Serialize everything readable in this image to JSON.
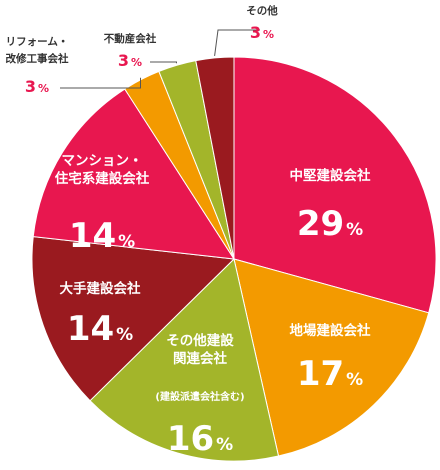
{
  "chart_data": {
    "type": "pie",
    "start_angle_deg": 0,
    "direction": "clockwise",
    "slices": [
      {
        "label": [
          "中堅建設会社"
        ],
        "value": 29,
        "unit": "%",
        "color": "#e8174f",
        "label_pos": "inside"
      },
      {
        "label": [
          "地場建設会社"
        ],
        "value": 17,
        "unit": "%",
        "color": "#f39a00",
        "label_pos": "inside"
      },
      {
        "label": [
          "その他建設",
          "関連会社"
        ],
        "note": "(建設派遣会社含む)",
        "value": 16,
        "unit": "%",
        "color": "#a3b52a",
        "label_pos": "inside"
      },
      {
        "label": [
          "大手建設会社"
        ],
        "value": 14,
        "unit": "%",
        "color": "#9a1a1f",
        "label_pos": "inside"
      },
      {
        "label": [
          "マンション・",
          "住宅系建設会社"
        ],
        "value": 14,
        "unit": "%",
        "color": "#e8174f",
        "label_pos": "inside"
      },
      {
        "label": [
          "リフォーム・",
          "改修工事会社"
        ],
        "value": 3,
        "unit": "%",
        "color": "#f39a00",
        "label_pos": "outside"
      },
      {
        "label": [
          "不動産会社"
        ],
        "value": 3,
        "unit": "%",
        "color": "#a3b52a",
        "label_pos": "outside"
      },
      {
        "label": [
          "その他"
        ],
        "value": 3,
        "unit": "%",
        "color": "#9a1a1f",
        "label_pos": "outside"
      }
    ]
  }
}
